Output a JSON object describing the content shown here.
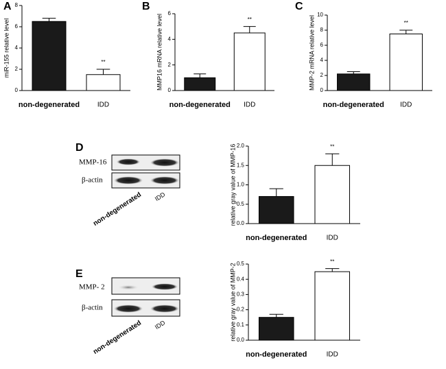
{
  "chart_data": [
    {
      "type": "bar",
      "panel": "A",
      "y_label": "miR-155 relative level",
      "categories": [
        "non-degenerated",
        "IDD"
      ],
      "values": [
        6.5,
        1.5
      ],
      "errors": [
        0.3,
        0.5
      ],
      "colors": [
        "#1a1a1a",
        "#ffffff"
      ],
      "annotation": "**",
      "ylim": [
        0,
        8
      ],
      "yticks": [
        0,
        2,
        4,
        6,
        8
      ]
    },
    {
      "type": "bar",
      "panel": "B",
      "y_label": "MMP16 mRNA relative level",
      "categories": [
        "non-degenerated",
        "IDD"
      ],
      "values": [
        1.0,
        4.5
      ],
      "errors": [
        0.3,
        0.5
      ],
      "colors": [
        "#1a1a1a",
        "#ffffff"
      ],
      "annotation": "**",
      "ylim": [
        0,
        6
      ],
      "yticks": [
        0,
        2,
        4,
        6
      ]
    },
    {
      "type": "bar",
      "panel": "C",
      "y_label": "MMP-2 mRNA relative level",
      "categories": [
        "non-degenerated",
        "IDD"
      ],
      "values": [
        2.2,
        7.5
      ],
      "errors": [
        0.3,
        0.5
      ],
      "colors": [
        "#1a1a1a",
        "#ffffff"
      ],
      "annotation": "**",
      "ylim": [
        0,
        10
      ],
      "yticks": [
        0,
        2,
        4,
        6,
        8,
        10
      ]
    },
    {
      "type": "bar",
      "y_label": "relative gray value of MMP-16",
      "categories": [
        "non-degenerated",
        "IDD"
      ],
      "values": [
        0.7,
        1.5
      ],
      "errors": [
        0.2,
        0.3
      ],
      "colors": [
        "#1a1a1a",
        "#ffffff"
      ],
      "annotation": "**",
      "ylim": [
        0,
        2.0
      ],
      "yticks": [
        {
          "value": 0,
          "label": "0.0"
        },
        0.5,
        {
          "value": 1,
          "label": "1.0"
        },
        1.5,
        {
          "value": 2,
          "label": "2.0"
        }
      ]
    },
    {
      "type": "bar",
      "y_label": "relative gray value of MMP-2",
      "categories": [
        "non-degenerated",
        "IDD"
      ],
      "values": [
        0.15,
        0.45
      ],
      "errors": [
        0.02,
        0.02
      ],
      "colors": [
        "#1a1a1a",
        "#ffffff"
      ],
      "annotation": "**",
      "ylim": [
        0,
        0.5
      ],
      "yticks": [
        {
          "value": 0,
          "label": "0.0"
        },
        0.1,
        0.2,
        0.3,
        0.4,
        0.5
      ]
    }
  ],
  "blots": [
    {
      "panel": "D",
      "rows": [
        "MMP-16",
        "β-actin"
      ],
      "lanes": [
        "non-degenerated",
        "IDD"
      ]
    },
    {
      "panel": "E",
      "rows": [
        "MMP- 2",
        "β-actin"
      ],
      "lanes": [
        "non-degenerated",
        "IDD"
      ]
    }
  ]
}
